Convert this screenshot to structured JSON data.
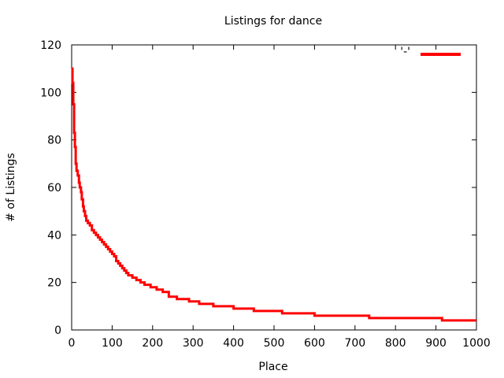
{
  "chart_data": {
    "type": "line",
    "title": "Listings for dance",
    "xlabel": "Place",
    "ylabel": "# of Listings",
    "xlim": [
      0,
      1000
    ],
    "ylim": [
      0,
      120
    ],
    "xticks": [
      0,
      100,
      200,
      300,
      400,
      500,
      600,
      700,
      800,
      900,
      1000
    ],
    "yticks": [
      0,
      20,
      40,
      60,
      80,
      100,
      120
    ],
    "grid": false,
    "legend_position": "top-right",
    "series": [
      {
        "name": "'-'",
        "color": "#ff0000",
        "style": "steps",
        "x": [
          0,
          2,
          4,
          6,
          8,
          10,
          12,
          15,
          18,
          20,
          23,
          25,
          28,
          30,
          33,
          36,
          40,
          45,
          50,
          55,
          60,
          65,
          70,
          75,
          80,
          85,
          90,
          95,
          100,
          105,
          110,
          115,
          120,
          125,
          130,
          135,
          140,
          150,
          160,
          170,
          180,
          195,
          210,
          225,
          240,
          260,
          290,
          315,
          350,
          400,
          450,
          520,
          600,
          735,
          915,
          1000
        ],
        "y": [
          110,
          104,
          95,
          83,
          77,
          70,
          67,
          65,
          62,
          60,
          58,
          55,
          52,
          50,
          48,
          46,
          45,
          44,
          42,
          41,
          40,
          39,
          38,
          37,
          36,
          35,
          34,
          33,
          32,
          31,
          29,
          28,
          27,
          26,
          25,
          24,
          23,
          22,
          21,
          20,
          19,
          18,
          17,
          16,
          14,
          13,
          12,
          11,
          10,
          9,
          8,
          7,
          6,
          5,
          4,
          4
        ]
      }
    ]
  }
}
